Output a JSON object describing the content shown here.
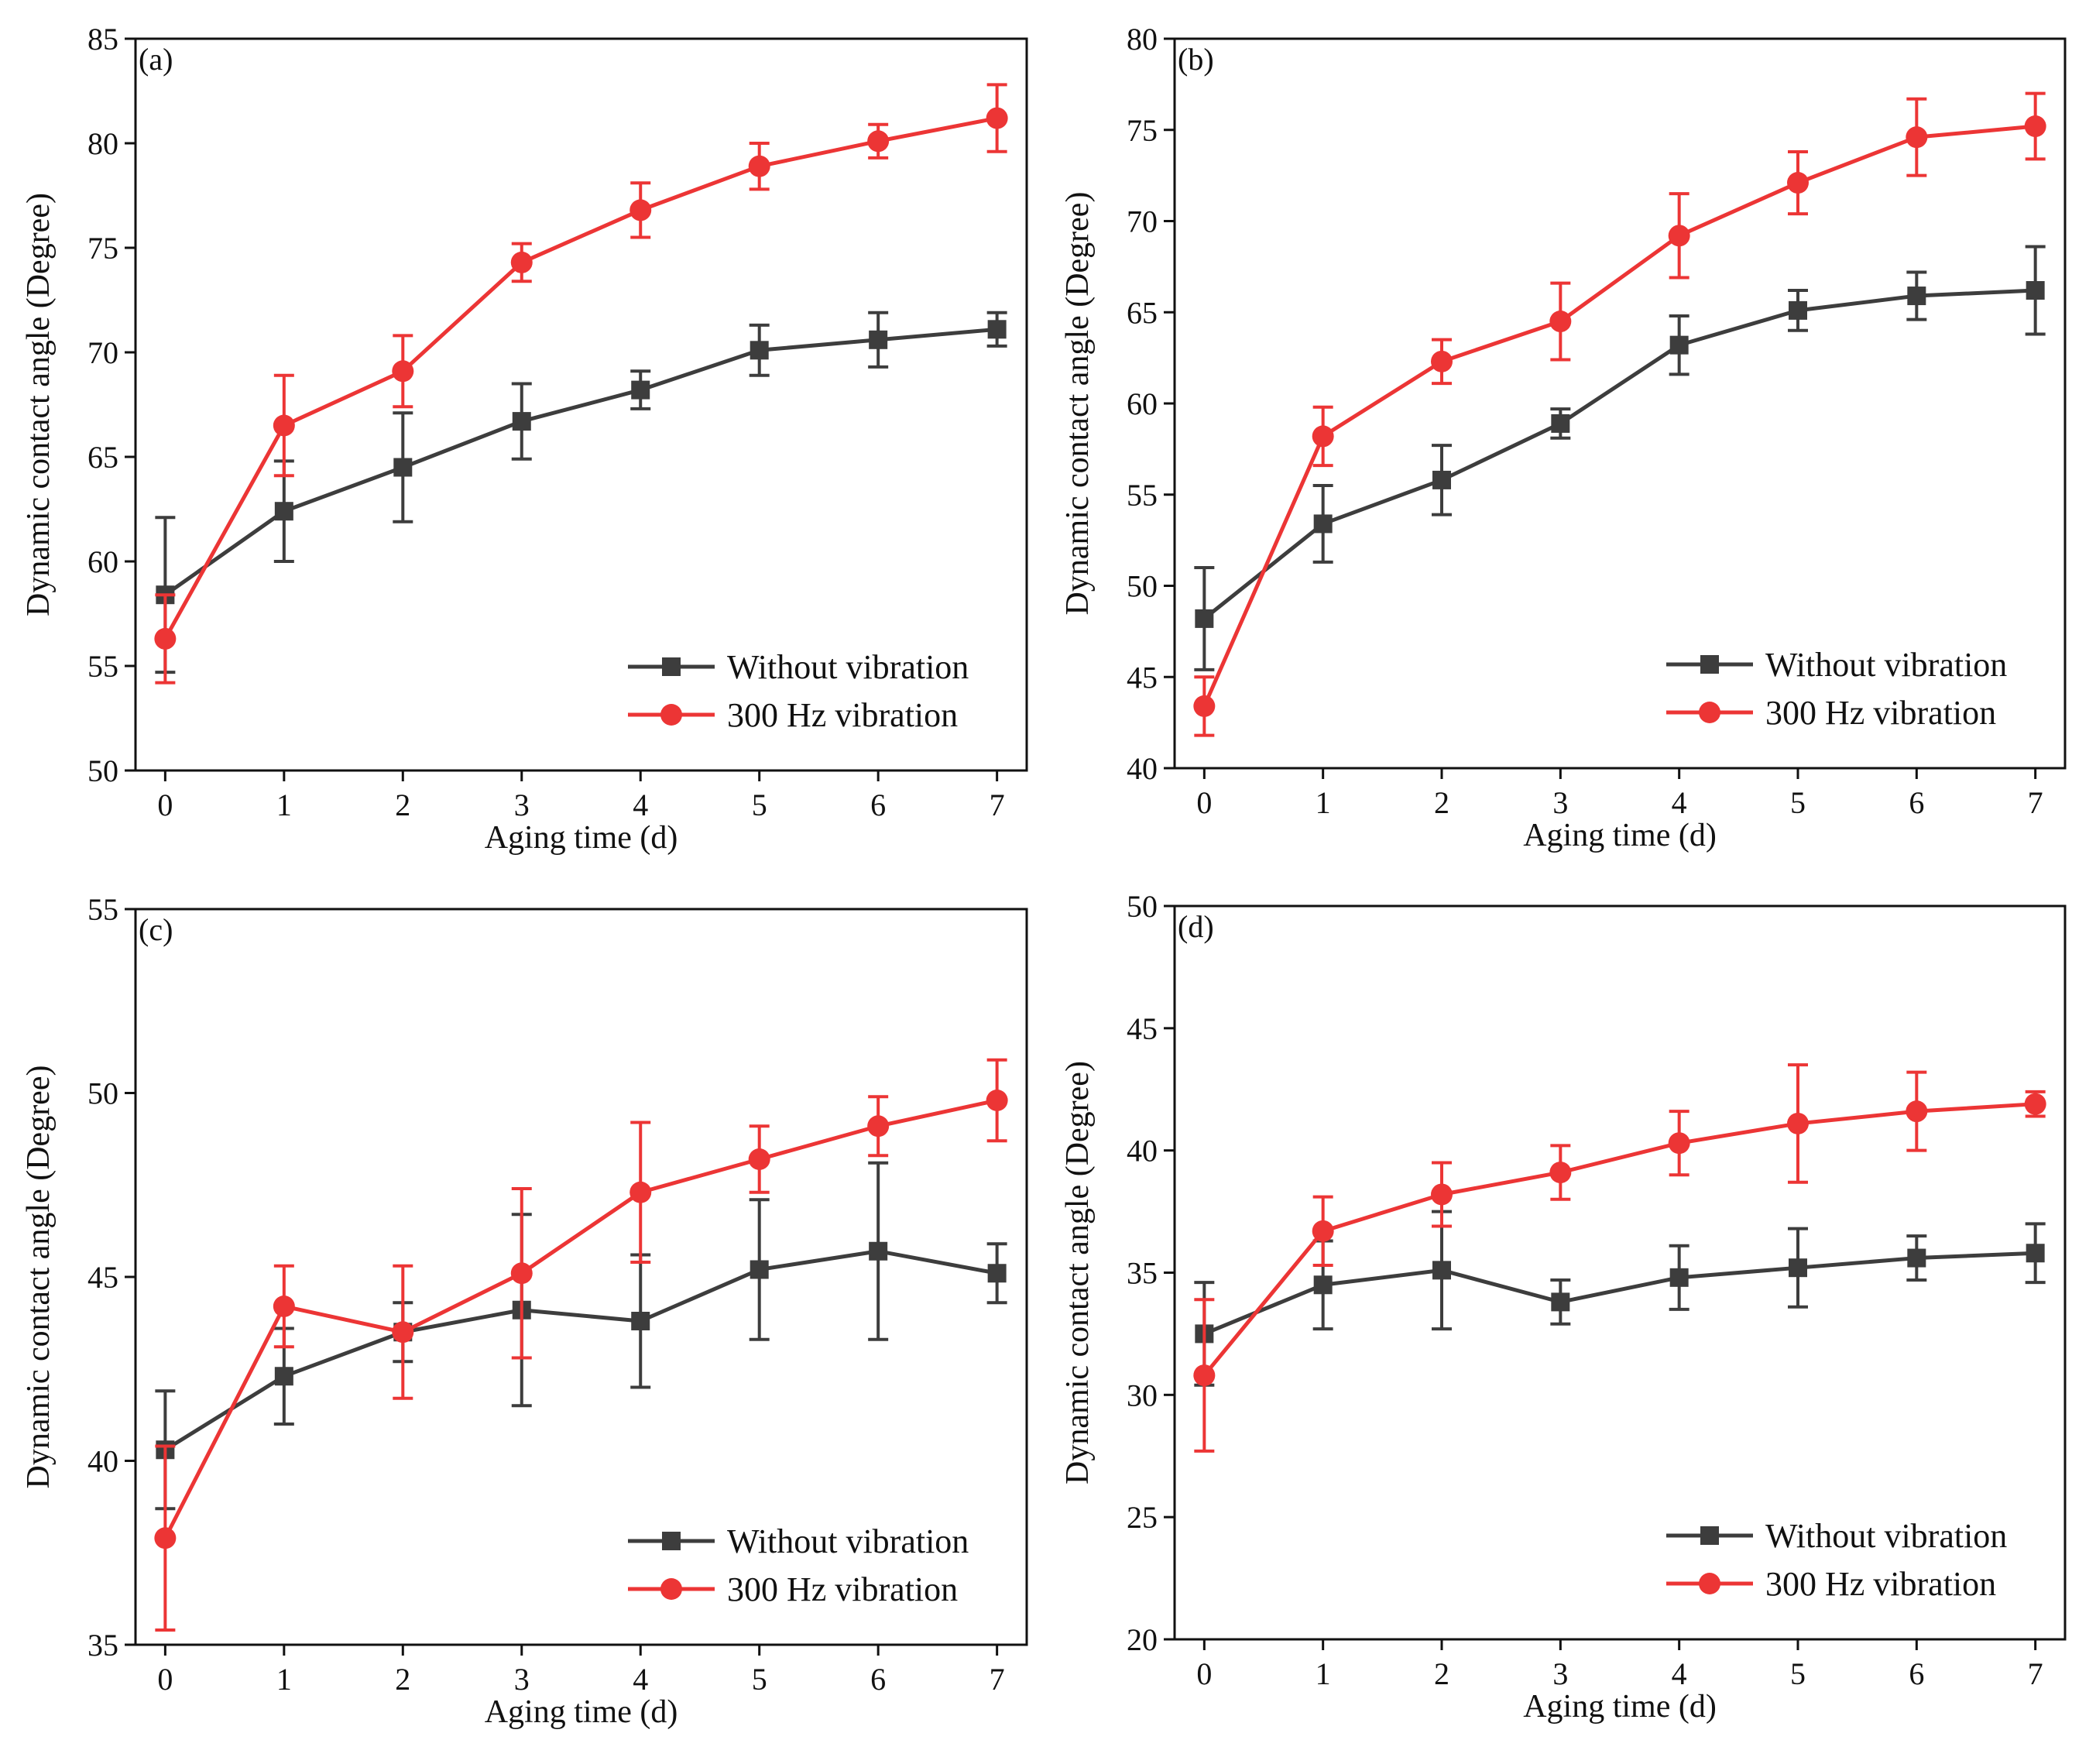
{
  "figure": {
    "legend_entries": [
      {
        "name": "Without vibration",
        "color": "#3d3d3d",
        "marker": "square"
      },
      {
        "name": "300 Hz vibration",
        "color": "#ec3535",
        "marker": "circle"
      }
    ]
  },
  "chart_data": [
    {
      "type": "line",
      "panel_label": "(a)",
      "xlabel": "Aging time (d)",
      "ylabel": "Dynamic contact angle (Degree)",
      "x": [
        0,
        1,
        2,
        3,
        4,
        5,
        6,
        7
      ],
      "x_ticks": [
        0,
        1,
        2,
        3,
        4,
        5,
        6,
        7
      ],
      "y_ticks": [
        50,
        55,
        60,
        65,
        70,
        75,
        80,
        85
      ],
      "xlim": [
        -0.25,
        7.25
      ],
      "ylim": [
        50,
        85
      ],
      "legend": "bottom-right",
      "grid": false,
      "series": [
        {
          "name": "Without vibration",
          "color": "#3d3d3d",
          "marker": "square",
          "values": [
            58.4,
            62.4,
            64.5,
            66.7,
            68.2,
            70.1,
            70.6,
            71.1
          ],
          "errors": [
            3.7,
            2.4,
            2.6,
            1.8,
            0.9,
            1.2,
            1.3,
            0.8
          ]
        },
        {
          "name": "300 Hz vibration",
          "color": "#ec3535",
          "marker": "circle",
          "values": [
            56.3,
            66.5,
            69.1,
            74.3,
            76.8,
            78.9,
            80.1,
            81.2
          ],
          "errors": [
            2.1,
            2.4,
            1.7,
            0.9,
            1.3,
            1.1,
            0.8,
            1.6
          ]
        }
      ]
    },
    {
      "type": "line",
      "panel_label": "(b)",
      "xlabel": "Aging time (d)",
      "ylabel": "Dynamic contact angle (Degree)",
      "x": [
        0,
        1,
        2,
        3,
        4,
        5,
        6,
        7
      ],
      "x_ticks": [
        0,
        1,
        2,
        3,
        4,
        5,
        6,
        7
      ],
      "y_ticks": [
        40,
        45,
        50,
        55,
        60,
        65,
        70,
        75,
        80
      ],
      "xlim": [
        -0.25,
        7.25
      ],
      "ylim": [
        40,
        80
      ],
      "legend": "bottom-right",
      "grid": false,
      "series": [
        {
          "name": "Without vibration",
          "color": "#3d3d3d",
          "marker": "square",
          "values": [
            48.2,
            53.4,
            55.8,
            58.9,
            63.2,
            65.1,
            65.9,
            66.2
          ],
          "errors": [
            2.8,
            2.1,
            1.9,
            0.8,
            1.6,
            1.1,
            1.3,
            2.4
          ]
        },
        {
          "name": "300 Hz vibration",
          "color": "#ec3535",
          "marker": "circle",
          "values": [
            43.4,
            58.2,
            62.3,
            64.5,
            69.2,
            72.1,
            74.6,
            75.2
          ],
          "errors": [
            1.6,
            1.6,
            1.2,
            2.1,
            2.3,
            1.7,
            2.1,
            1.8
          ]
        }
      ]
    },
    {
      "type": "line",
      "panel_label": "(c)",
      "xlabel": "Aging time (d)",
      "ylabel": "Dynamic contact angle (Degree)",
      "x": [
        0,
        1,
        2,
        3,
        4,
        5,
        6,
        7
      ],
      "x_ticks": [
        0,
        1,
        2,
        3,
        4,
        5,
        6,
        7
      ],
      "y_ticks": [
        35,
        40,
        45,
        50,
        55
      ],
      "xlim": [
        -0.25,
        7.25
      ],
      "ylim": [
        35,
        55
      ],
      "legend": "bottom-right",
      "grid": false,
      "series": [
        {
          "name": "Without vibration",
          "color": "#3d3d3d",
          "marker": "square",
          "values": [
            40.3,
            42.3,
            43.5,
            44.1,
            43.8,
            45.2,
            45.7,
            45.1
          ],
          "errors": [
            1.6,
            1.3,
            0.8,
            2.6,
            1.8,
            1.9,
            2.4,
            0.8
          ]
        },
        {
          "name": "300 Hz vibration",
          "color": "#ec3535",
          "marker": "circle",
          "values": [
            37.9,
            44.2,
            43.5,
            45.1,
            47.3,
            48.2,
            49.1,
            49.8
          ],
          "errors": [
            2.5,
            1.1,
            1.8,
            2.3,
            1.9,
            0.9,
            0.8,
            1.1
          ]
        }
      ]
    },
    {
      "type": "line",
      "panel_label": "(d)",
      "xlabel": "Aging time (d)",
      "ylabel": "Dynamic contact angle (Degree)",
      "x": [
        0,
        1,
        2,
        3,
        4,
        5,
        6,
        7
      ],
      "x_ticks": [
        0,
        1,
        2,
        3,
        4,
        5,
        6,
        7
      ],
      "y_ticks": [
        20,
        25,
        30,
        35,
        40,
        45,
        50
      ],
      "xlim": [
        -0.25,
        7.25
      ],
      "ylim": [
        20,
        50
      ],
      "legend": "bottom-right",
      "grid": false,
      "series": [
        {
          "name": "Without vibration",
          "color": "#3d3d3d",
          "marker": "square",
          "values": [
            32.5,
            34.5,
            35.1,
            33.8,
            34.8,
            35.2,
            35.6,
            35.8
          ],
          "errors": [
            2.1,
            1.8,
            2.4,
            0.9,
            1.3,
            1.6,
            0.9,
            1.2
          ]
        },
        {
          "name": "300 Hz vibration",
          "color": "#ec3535",
          "marker": "circle",
          "values": [
            30.8,
            36.7,
            38.2,
            39.1,
            40.3,
            41.1,
            41.6,
            41.9
          ],
          "errors": [
            3.1,
            1.4,
            1.3,
            1.1,
            1.3,
            2.4,
            1.6,
            0.5
          ]
        }
      ]
    }
  ]
}
